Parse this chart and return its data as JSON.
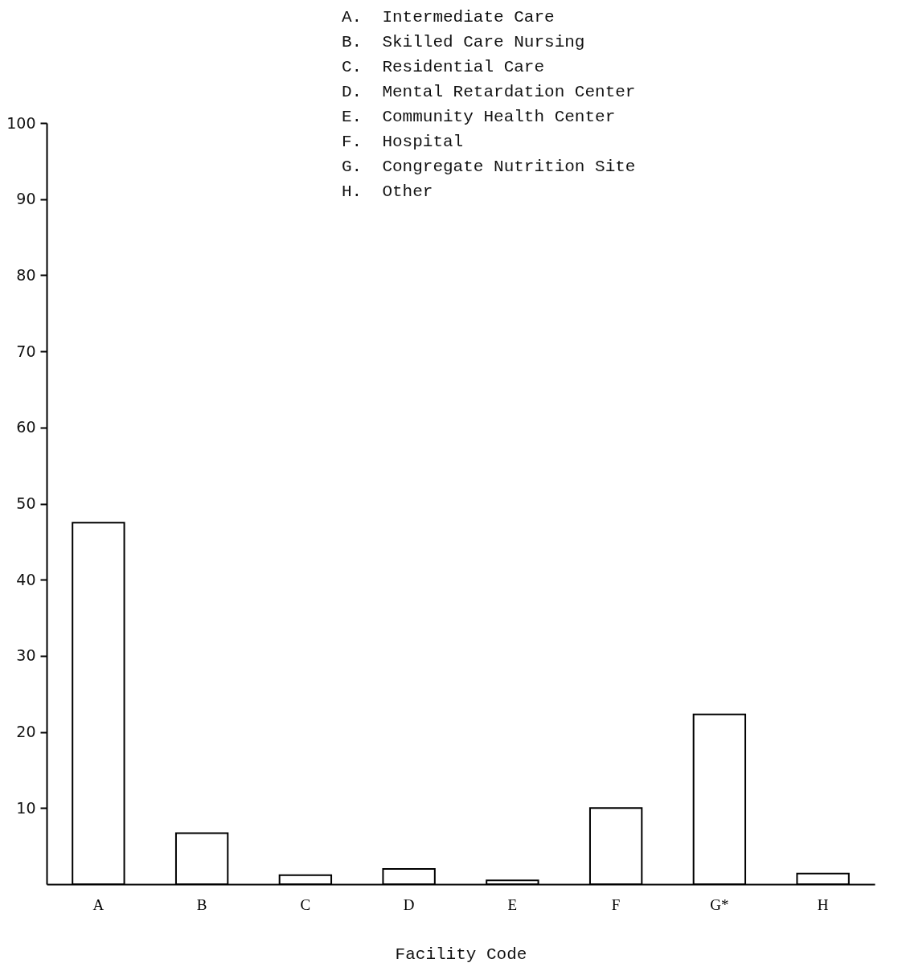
{
  "chart_data": {
    "type": "bar",
    "xlabel": "Facility Code",
    "categories": [
      "A",
      "B",
      "C",
      "D",
      "E",
      "F",
      "G*",
      "H"
    ],
    "values": [
      47.5,
      6.7,
      1.2,
      2.0,
      0.5,
      10,
      22.3,
      1.4
    ],
    "color": "#000000",
    "ylim": [
      0,
      100
    ],
    "yticks": [
      10,
      20,
      30,
      40,
      50,
      60,
      70,
      80,
      90,
      100
    ],
    "grid": false,
    "annotations": [
      "A.  Intermediate Care",
      "B.  Skilled Care Nursing",
      "C.  Residential Care",
      "D.  Mental Retardation Center",
      "E.  Community Health Center",
      "F.  Hospital",
      "G.  Congregate Nutrition Site",
      "H.  Other"
    ]
  }
}
